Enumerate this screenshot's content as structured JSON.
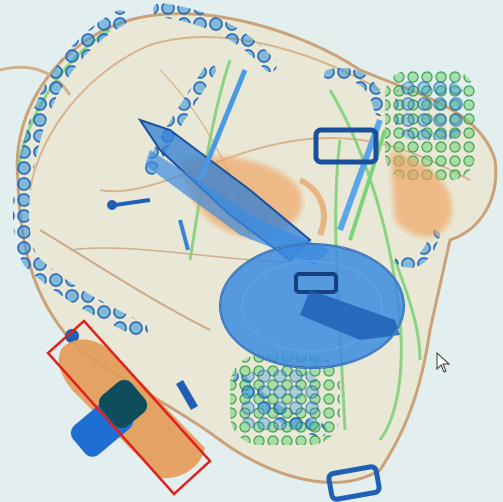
{
  "scene": {
    "description_color_bg": "#e3eeee",
    "bag_outline_color": "#c9a27a",
    "organic_color": "#e39a55",
    "metal_color": "#2f7fd6",
    "mixed_color": "#5fc265",
    "highlight_color": "#e0201c"
  },
  "detection": {
    "box_color": "#e0201c"
  },
  "pointer": {
    "icon": "mouse-pointer-icon"
  }
}
